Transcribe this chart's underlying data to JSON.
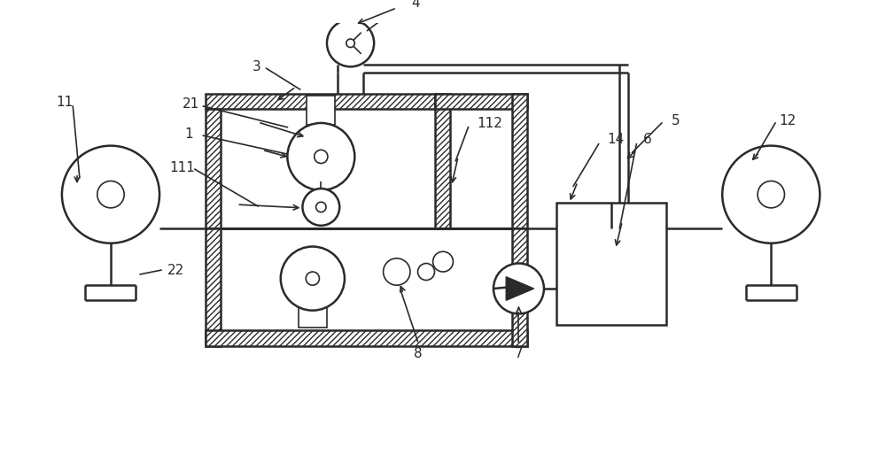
{
  "bg_color": "#ffffff",
  "line_color": "#2a2a2a",
  "figsize": [
    10.0,
    5.14
  ],
  "dpi": 100
}
